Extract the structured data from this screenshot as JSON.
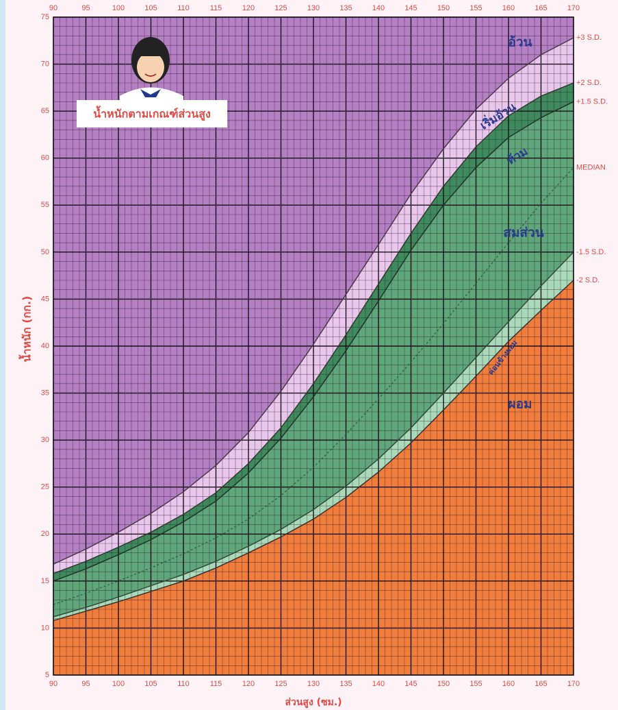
{
  "chart_data": {
    "type": "band",
    "title": "น้ำหนักตามเกณฑ์ส่วนสูง",
    "x_label": "ส่วนสูง (ซม.)",
    "y_label": "น้ำหนัก (กก.)",
    "x": [
      90,
      95,
      100,
      105,
      110,
      115,
      120,
      125,
      130,
      135,
      140,
      145,
      150,
      155,
      160,
      165,
      170
    ],
    "xlim": [
      90,
      170
    ],
    "ylim": [
      5,
      75
    ],
    "xticks": [
      90,
      95,
      100,
      105,
      110,
      115,
      120,
      125,
      130,
      135,
      140,
      145,
      150,
      155,
      160,
      165,
      170
    ],
    "yticks": [
      5,
      10,
      15,
      20,
      25,
      30,
      35,
      40,
      45,
      50,
      55,
      60,
      65,
      70,
      75
    ],
    "grid": true,
    "background": "#b57fc4",
    "series": [
      {
        "name": "+3 S.D.",
        "color": "#4a3a4a",
        "fill": "#e9c6ec",
        "values": [
          16.8,
          18.4,
          20.2,
          22.2,
          24.5,
          27.3,
          30.8,
          35.2,
          40.2,
          45.5,
          50.8,
          56.2,
          61,
          65.2,
          68.5,
          71,
          72.8
        ]
      },
      {
        "name": "+2 S.D.",
        "color": "#2f3a30",
        "fill": "#3f8a5c",
        "values": [
          15.8,
          17.1,
          18.6,
          20.2,
          22.1,
          24.4,
          27.5,
          31.3,
          36,
          41.2,
          46.6,
          52,
          57,
          61.2,
          64.5,
          66.6,
          68
        ]
      },
      {
        "name": "+1.5 S.D.",
        "color": "#1f3326",
        "fill": "#5fa77a",
        "values": [
          15,
          16.3,
          17.8,
          19.4,
          21.3,
          23.5,
          26.5,
          30.2,
          34.6,
          39.5,
          44.8,
          50.2,
          55,
          59,
          62.2,
          64.3,
          66
        ]
      },
      {
        "name": "MEDIAN",
        "color": "#2e5a3e",
        "dashed": true,
        "values": [
          12.5,
          13.7,
          15,
          16.4,
          17.9,
          19.6,
          21.6,
          24.1,
          27.1,
          30.6,
          34.4,
          38.3,
          42.4,
          46.7,
          51,
          55.2,
          59
        ]
      },
      {
        "name": "-1.5 S.D.",
        "color": "#2f4a36",
        "fill": "#a9d9b9",
        "values": [
          11.2,
          12.2,
          13.3,
          14.5,
          15.7,
          17.1,
          18.7,
          20.5,
          22.6,
          25.1,
          28,
          31.3,
          35,
          38.8,
          42.6,
          46.4,
          50
        ]
      },
      {
        "name": "-2 S.D.",
        "color": "#3a3030",
        "fill": "#f07d3c",
        "values": [
          10.8,
          11.8,
          12.8,
          13.9,
          15,
          16.4,
          18,
          19.7,
          21.6,
          23.9,
          26.6,
          29.7,
          33.2,
          36.8,
          40.5,
          43.8,
          47
        ]
      }
    ],
    "zones": [
      "อ้วน",
      "เริ่มอ้วน",
      "ท้วม",
      "สมส่วน",
      "ค่อนข้างผอม",
      "ผอม"
    ]
  }
}
